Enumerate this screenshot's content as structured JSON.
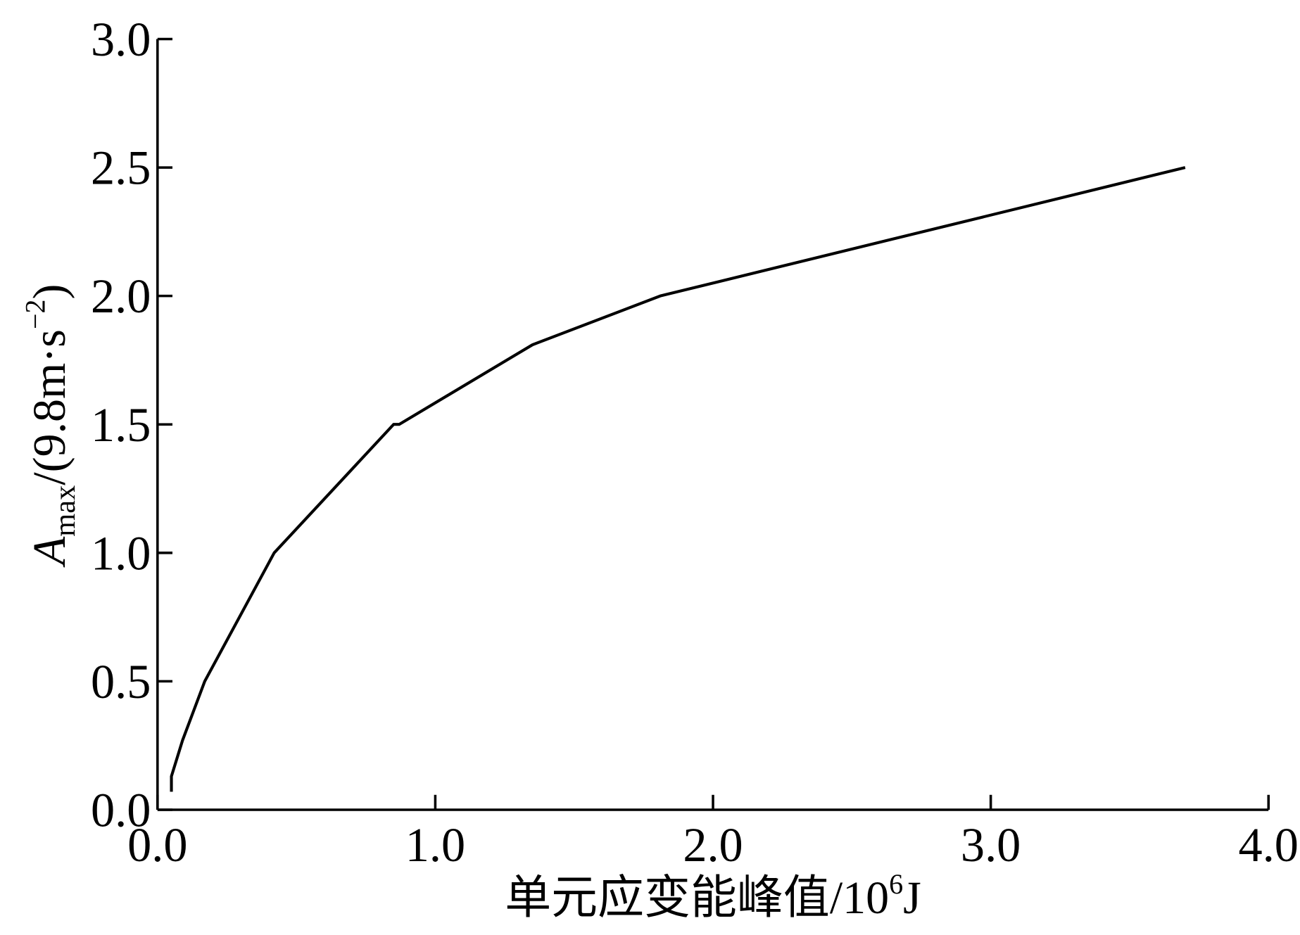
{
  "chart_data": {
    "type": "line",
    "xlabel": {
      "text": "单元应变能峰值/10",
      "exponent": "6",
      "unit": "J"
    },
    "ylabel": {
      "symbol": "A",
      "subscript": "max",
      "unit": "/(9.8m·s",
      "exponent": "−2",
      "close": ")"
    },
    "x": [
      0.05,
      0.05,
      0.09,
      0.17,
      0.42,
      0.85,
      0.87,
      1.35,
      1.81,
      3.7
    ],
    "series": [
      {
        "color": "#000000",
        "values": [
          0.07,
          0.13,
          0.27,
          0.5,
          1.0,
          1.5,
          1.5,
          1.81,
          2.0,
          2.5
        ]
      }
    ],
    "xlim": [
      0,
      4
    ],
    "ylim": [
      0,
      3
    ],
    "xticks": [
      {
        "value": 0,
        "label": "0.0"
      },
      {
        "value": 1,
        "label": "1.0"
      },
      {
        "value": 2,
        "label": "2.0"
      },
      {
        "value": 3,
        "label": "3.0"
      },
      {
        "value": 4,
        "label": "4.0"
      }
    ],
    "yticks": [
      {
        "value": 0,
        "label": "0.0"
      },
      {
        "value": 0.5,
        "label": "0.5"
      },
      {
        "value": 1,
        "label": "1.0"
      },
      {
        "value": 1.5,
        "label": "1.5"
      },
      {
        "value": 2,
        "label": "2.0"
      },
      {
        "value": 2.5,
        "label": "2.5"
      },
      {
        "value": 3,
        "label": "3.0"
      }
    ],
    "grid": false
  }
}
